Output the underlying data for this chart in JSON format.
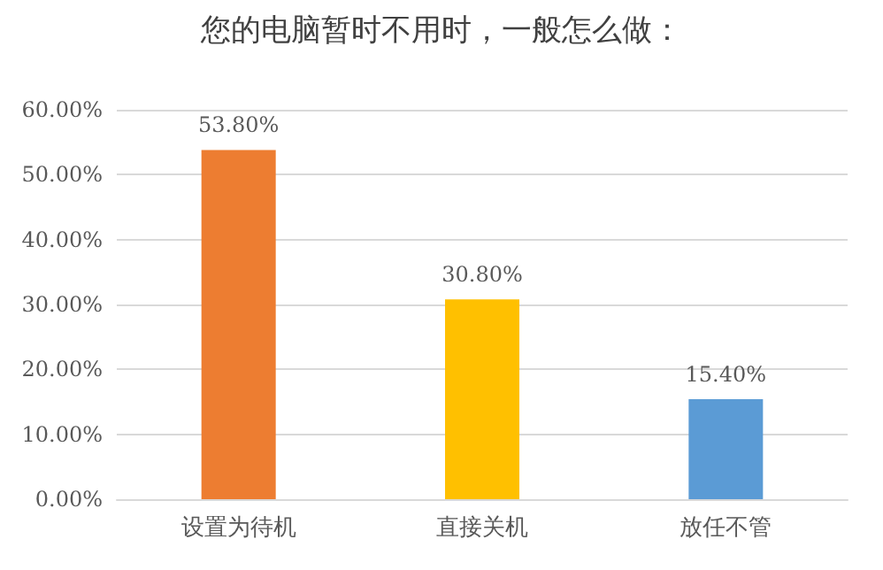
{
  "chart_data": {
    "type": "bar",
    "title": "您的电脑暂时不用时，一般怎么做：",
    "categories": [
      "设置为待机",
      "直接关机",
      "放任不管"
    ],
    "values": [
      53.8,
      30.8,
      15.4
    ],
    "colors": [
      "#ed7d31",
      "#ffc000",
      "#5b9bd5"
    ],
    "value_labels": [
      "53.80%",
      "30.80%",
      "15.40%"
    ],
    "ylim": [
      0,
      60
    ],
    "yticks": [
      {
        "value": 0,
        "label": "0.00%"
      },
      {
        "value": 10,
        "label": "10.00%"
      },
      {
        "value": 20,
        "label": "20.00%"
      },
      {
        "value": 30,
        "label": "30.00%"
      },
      {
        "value": 40,
        "label": "40.00%"
      },
      {
        "value": 50,
        "label": "50.00%"
      },
      {
        "value": 60,
        "label": "60.00%"
      }
    ],
    "grid": "y"
  }
}
